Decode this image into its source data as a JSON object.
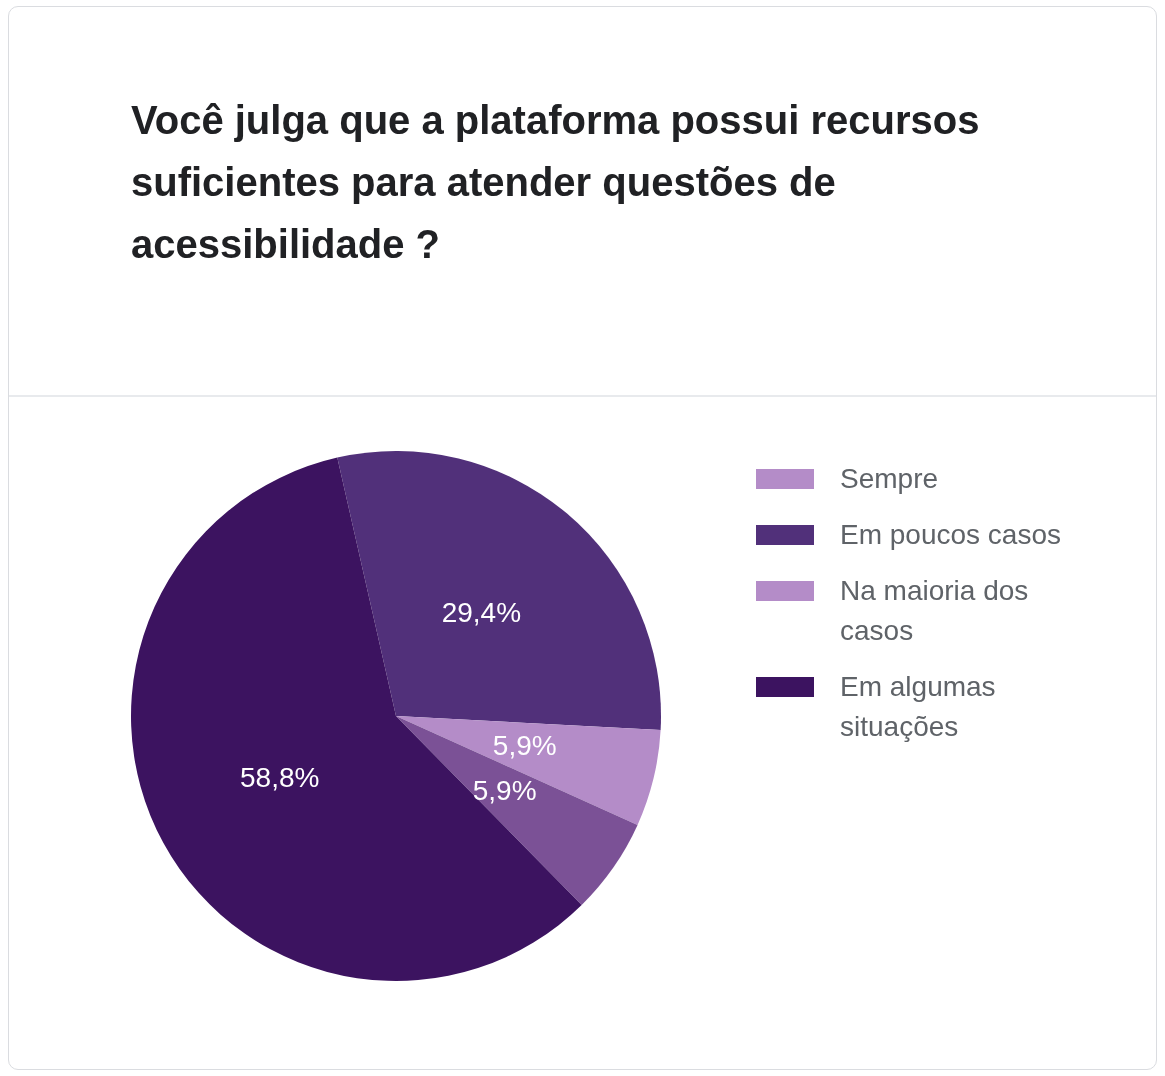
{
  "chart_data": {
    "type": "pie",
    "title": "Você julga que a plataforma possui recursos suficientes para atender questões de acessibilidade ?",
    "categories": [
      "Sempre",
      "Em poucos casos",
      "Na maioria dos casos",
      null,
      "Em algumas situações"
    ],
    "values": [
      0,
      29.4,
      5.9,
      5.9,
      58.8
    ],
    "colors": [
      "#b48cc8",
      "#51307a",
      "#b48cc8",
      "#7b5196",
      "#3c1360"
    ],
    "value_labels": [
      null,
      "29,4%",
      "5,9%",
      "5,9%",
      "58,8%"
    ],
    "legend": "right"
  }
}
